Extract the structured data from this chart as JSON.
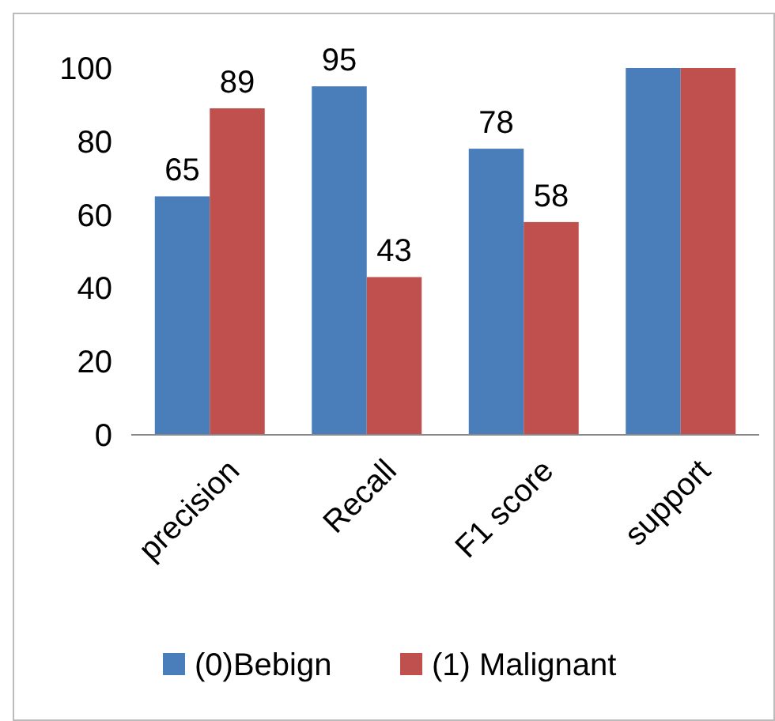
{
  "chart_data": {
    "type": "bar",
    "categories": [
      "precision",
      "Recall",
      "F1 score",
      "support"
    ],
    "series": [
      {
        "name": "(0)Bebign",
        "color": "#4a7ebb",
        "values": [
          65,
          95,
          78,
          100
        ],
        "value_labels": [
          "65",
          "95",
          "78",
          null
        ]
      },
      {
        "name": "(1) Malignant",
        "color": "#c0504d",
        "values": [
          89,
          43,
          58,
          100
        ],
        "value_labels": [
          "89",
          "43",
          "58",
          null
        ]
      }
    ],
    "ylim": [
      0,
      100
    ],
    "yticks": [
      0,
      20,
      40,
      60,
      80,
      100
    ],
    "grid": false,
    "legend": "bottom"
  }
}
